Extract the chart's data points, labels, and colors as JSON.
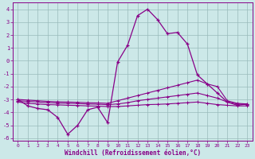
{
  "xlabel": "Windchill (Refroidissement éolien,°C)",
  "bg_color": "#cce8e8",
  "line_color": "#880088",
  "grid_color": "#99bbbb",
  "x_values": [
    0,
    1,
    2,
    3,
    4,
    5,
    6,
    7,
    8,
    9,
    10,
    11,
    12,
    13,
    14,
    15,
    16,
    17,
    18,
    19,
    20,
    21,
    22,
    23
  ],
  "series1": [
    -3.0,
    -3.5,
    -3.7,
    -3.8,
    -4.4,
    -5.7,
    -5.0,
    -3.8,
    -3.6,
    -4.8,
    -0.1,
    1.2,
    3.5,
    4.0,
    3.2,
    2.1,
    2.2,
    1.3,
    -1.1,
    -1.8,
    -2.5,
    -3.2,
    -3.45,
    -3.35
  ],
  "series2": [
    -3.0,
    -3.05,
    -3.1,
    -3.15,
    -3.18,
    -3.2,
    -3.22,
    -3.25,
    -3.27,
    -3.3,
    -3.1,
    -2.9,
    -2.7,
    -2.5,
    -2.3,
    -2.1,
    -1.9,
    -1.7,
    -1.5,
    -1.8,
    -2.0,
    -3.1,
    -3.3,
    -3.35
  ],
  "series3": [
    -3.1,
    -3.15,
    -3.2,
    -3.25,
    -3.28,
    -3.3,
    -3.32,
    -3.35,
    -3.37,
    -3.4,
    -3.35,
    -3.25,
    -3.1,
    -3.0,
    -2.9,
    -2.8,
    -2.7,
    -2.6,
    -2.5,
    -2.7,
    -2.9,
    -3.2,
    -3.35,
    -3.4
  ],
  "series4": [
    -3.2,
    -3.3,
    -3.35,
    -3.4,
    -3.42,
    -3.45,
    -3.47,
    -3.5,
    -3.52,
    -3.55,
    -3.55,
    -3.5,
    -3.45,
    -3.4,
    -3.38,
    -3.35,
    -3.3,
    -3.25,
    -3.2,
    -3.3,
    -3.4,
    -3.45,
    -3.5,
    -3.5
  ],
  "xlim": [
    -0.5,
    23.5
  ],
  "ylim": [
    -6.2,
    4.5
  ],
  "yticks": [
    -6,
    -5,
    -4,
    -3,
    -2,
    -1,
    0,
    1,
    2,
    3,
    4
  ],
  "xticks": [
    0,
    1,
    2,
    3,
    4,
    5,
    6,
    7,
    8,
    9,
    10,
    11,
    12,
    13,
    14,
    15,
    16,
    17,
    18,
    19,
    20,
    21,
    22,
    23
  ]
}
